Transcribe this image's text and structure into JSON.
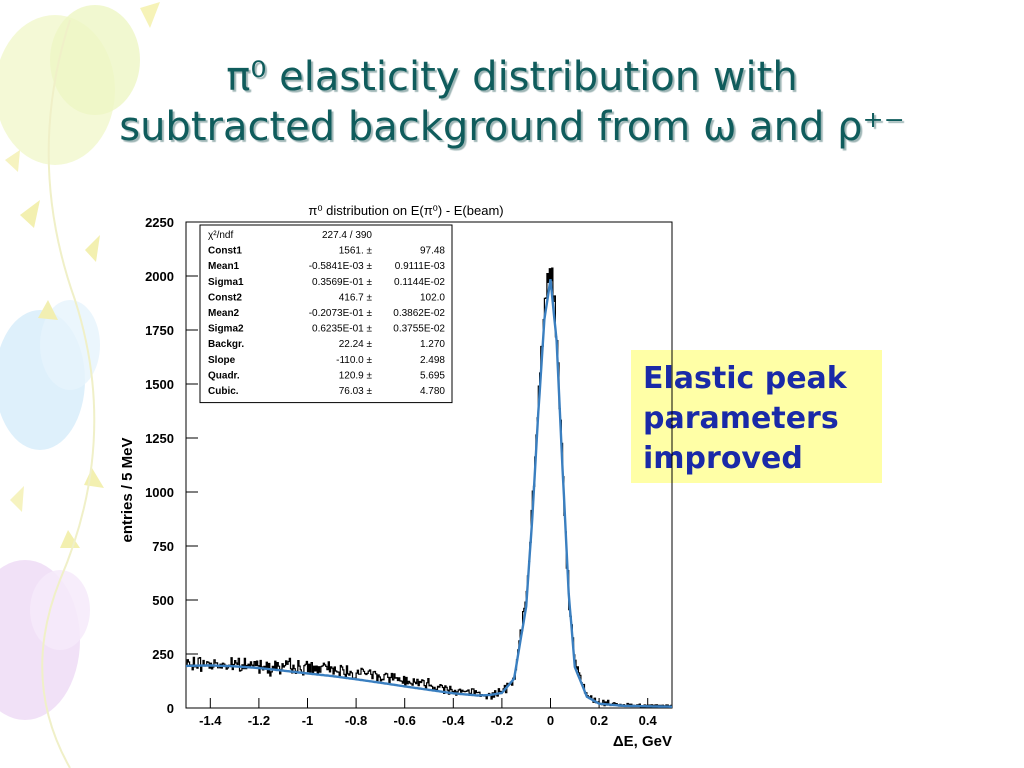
{
  "slide": {
    "title_line1": "π⁰ elasticity distribution with",
    "title_line2": "subtracted background from ω and ρ⁺⁻",
    "callout": [
      "Elastic peak",
      "parameters",
      "improved"
    ]
  },
  "colors": {
    "title": "#0f5c5c",
    "callout_bg": "#ffffa6",
    "callout_text": "#1a2aa8",
    "histogram": "#000000",
    "fit": "#3a7fc0"
  },
  "chart_data": {
    "type": "line",
    "title": "π⁰ distribution on E(π⁰) - E(beam)",
    "xlabel": "ΔE, GeV",
    "ylabel": "entries / 5 MeV",
    "xlim": [
      -1.5,
      0.5
    ],
    "ylim": [
      0,
      2250
    ],
    "xticks": [
      -1.4,
      -1.2,
      -1,
      -0.8,
      -0.6,
      -0.4,
      -0.2,
      0,
      0.2,
      0.4
    ],
    "xtick_labels": [
      "-1.4",
      "-1.2",
      "-1",
      "-0.8",
      "-0.6",
      "-0.4",
      "-0.2",
      "0",
      "0.2",
      "0.4"
    ],
    "yticks": [
      0,
      250,
      500,
      750,
      1000,
      1250,
      1500,
      1750,
      2000,
      2250
    ],
    "ytick_labels": [
      "0",
      "250",
      "500",
      "750",
      "1000",
      "1250",
      "1500",
      "1750",
      "2000",
      "2250"
    ],
    "bin_width_gev": 0.005,
    "fit_function": "two Gaussians + cubic polynomial background",
    "fit_parameters": {
      "Const1": 1561.0,
      "Mean1": -0.0005841,
      "Sigma1": 0.03569,
      "Const2": 416.7,
      "Mean2": -0.02073,
      "Sigma2": 0.06235,
      "Backgr": 22.24,
      "Slope": -110.0,
      "Quadr": 120.9,
      "Cubic": 76.03
    },
    "series": [
      {
        "type": "histogram",
        "x": [
          -1.5,
          -1.4,
          -1.3,
          -1.2,
          -1.1,
          -1.0,
          -0.9,
          -0.8,
          -0.7,
          -0.6,
          -0.5,
          -0.4,
          -0.3,
          -0.25,
          -0.2,
          -0.15,
          -0.1,
          -0.075,
          -0.05,
          -0.025,
          0,
          0.025,
          0.05,
          0.075,
          0.1,
          0.15,
          0.2,
          0.3,
          0.4,
          0.5
        ],
        "y": [
          200,
          205,
          195,
          200,
          190,
          185,
          180,
          165,
          150,
          130,
          110,
          85,
          65,
          60,
          70,
          140,
          500,
          900,
          1400,
          1850,
          2060,
          1750,
          1150,
          550,
          200,
          55,
          25,
          15,
          12,
          10
        ]
      },
      {
        "type": "fit",
        "x": [
          -1.5,
          -1.4,
          -1.3,
          -1.2,
          -1.1,
          -1.0,
          -0.9,
          -0.8,
          -0.7,
          -0.6,
          -0.5,
          -0.4,
          -0.3,
          -0.25,
          -0.2,
          -0.15,
          -0.1,
          -0.075,
          -0.05,
          -0.025,
          0,
          0.025,
          0.05,
          0.075,
          0.1,
          0.15,
          0.2,
          0.3,
          0.4,
          0.5
        ],
        "y": [
          195,
          197,
          193,
          185,
          173,
          160,
          148,
          133,
          117,
          100,
          84,
          68,
          58,
          60,
          70,
          135,
          470,
          880,
          1370,
          1800,
          1985,
          1700,
          1100,
          530,
          190,
          52,
          20,
          10,
          8,
          6
        ]
      }
    ],
    "stats_box": [
      [
        "χ²/ndf",
        "227.4   /   390",
        ""
      ],
      [
        "Const1",
        "1561.  ±",
        "97.48"
      ],
      [
        "Mean1",
        "-0.5841E-03 ±",
        "0.9111E-03"
      ],
      [
        "Sigma1",
        "0.3569E-01 ±",
        "0.1144E-02"
      ],
      [
        "Const2",
        "416.7 ±",
        "102.0"
      ],
      [
        "Mean2",
        "-0.2073E-01 ±",
        "0.3862E-02"
      ],
      [
        "Sigma2",
        "0.6235E-01 ±",
        "0.3755E-02"
      ],
      [
        "Backgr.",
        "22.24 ±",
        "1.270"
      ],
      [
        "Slope",
        "-110.0 ±",
        "2.498"
      ],
      [
        "Quadr.",
        "120.9 ±",
        "5.695"
      ],
      [
        "Cubic.",
        "76.03 ±",
        "4.780"
      ]
    ],
    "grid": false,
    "legend": "top-left stats box"
  }
}
